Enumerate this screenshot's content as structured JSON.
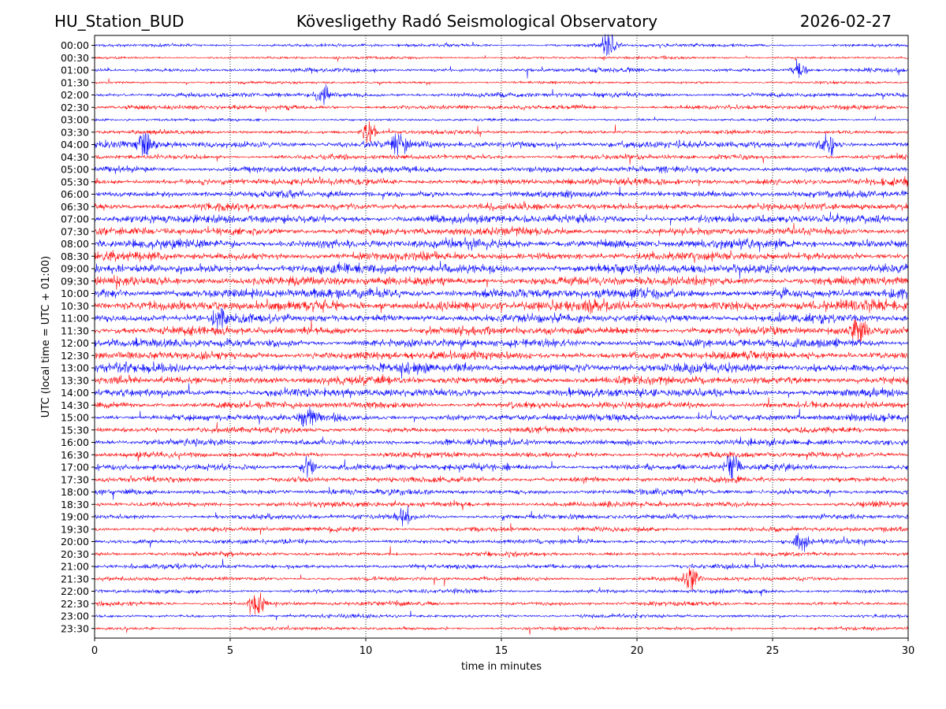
{
  "header": {
    "station": "HU_Station_BUD",
    "title": "Kövesligethy Radó Seismological Observatory",
    "date": "2026-02-27"
  },
  "chart_data": {
    "type": "line",
    "subtype": "helicorder",
    "title": "Kövesligethy Radó Seismological Observatory",
    "xlabel": "time in minutes",
    "ylabel": "UTC (local time = UTC + 01:00)",
    "xlim": [
      0,
      30
    ],
    "x_ticks": [
      0,
      5,
      10,
      15,
      20,
      25,
      30
    ],
    "vertical_grid": "dotted at each x tick",
    "colors": {
      "even_rows": "#0000ff",
      "odd_rows": "#ff0000"
    },
    "row_labels": [
      "00:00",
      "00:30",
      "01:00",
      "01:30",
      "02:00",
      "02:30",
      "03:00",
      "03:30",
      "04:00",
      "04:30",
      "05:00",
      "05:30",
      "06:00",
      "06:30",
      "07:00",
      "07:30",
      "08:00",
      "08:30",
      "09:00",
      "09:30",
      "10:00",
      "10:30",
      "11:00",
      "11:30",
      "12:00",
      "12:30",
      "13:00",
      "13:30",
      "14:00",
      "14:30",
      "15:00",
      "15:30",
      "16:00",
      "16:30",
      "17:00",
      "17:30",
      "18:00",
      "18:30",
      "19:00",
      "19:30",
      "20:00",
      "20:30",
      "21:00",
      "21:30",
      "22:00",
      "22:30",
      "23:00",
      "23:30"
    ],
    "row_noise_level": [
      0.25,
      0.2,
      0.3,
      0.2,
      0.35,
      0.35,
      0.2,
      0.3,
      0.5,
      0.35,
      0.45,
      0.5,
      0.5,
      0.5,
      0.6,
      0.55,
      0.65,
      0.6,
      0.7,
      0.65,
      0.7,
      0.75,
      0.6,
      0.6,
      0.6,
      0.6,
      0.65,
      0.6,
      0.6,
      0.5,
      0.5,
      0.4,
      0.45,
      0.4,
      0.45,
      0.4,
      0.4,
      0.4,
      0.35,
      0.35,
      0.35,
      0.3,
      0.35,
      0.3,
      0.3,
      0.3,
      0.25,
      0.25
    ],
    "bursts": [
      {
        "row": "00:00",
        "minute": 19.0,
        "amplitude": 2.2
      },
      {
        "row": "01:00",
        "minute": 26.0,
        "amplitude": 1.2
      },
      {
        "row": "02:00",
        "minute": 8.4,
        "amplitude": 1.4
      },
      {
        "row": "03:30",
        "minute": 10.1,
        "amplitude": 1.5
      },
      {
        "row": "04:00",
        "minute": 1.8,
        "amplitude": 2.0
      },
      {
        "row": "04:00",
        "minute": 11.2,
        "amplitude": 2.0
      },
      {
        "row": "04:00",
        "minute": 27.0,
        "amplitude": 1.6
      },
      {
        "row": "11:00",
        "minute": 4.6,
        "amplitude": 1.5
      },
      {
        "row": "11:30",
        "minute": 28.2,
        "amplitude": 2.0
      },
      {
        "row": "15:00",
        "minute": 7.9,
        "amplitude": 1.8
      },
      {
        "row": "17:00",
        "minute": 7.9,
        "amplitude": 1.4
      },
      {
        "row": "17:00",
        "minute": 23.5,
        "amplitude": 2.0
      },
      {
        "row": "19:00",
        "minute": 11.4,
        "amplitude": 1.4
      },
      {
        "row": "20:00",
        "minute": 26.1,
        "amplitude": 1.7
      },
      {
        "row": "21:30",
        "minute": 22.0,
        "amplitude": 1.8
      },
      {
        "row": "22:30",
        "minute": 6.0,
        "amplitude": 1.8
      }
    ]
  }
}
